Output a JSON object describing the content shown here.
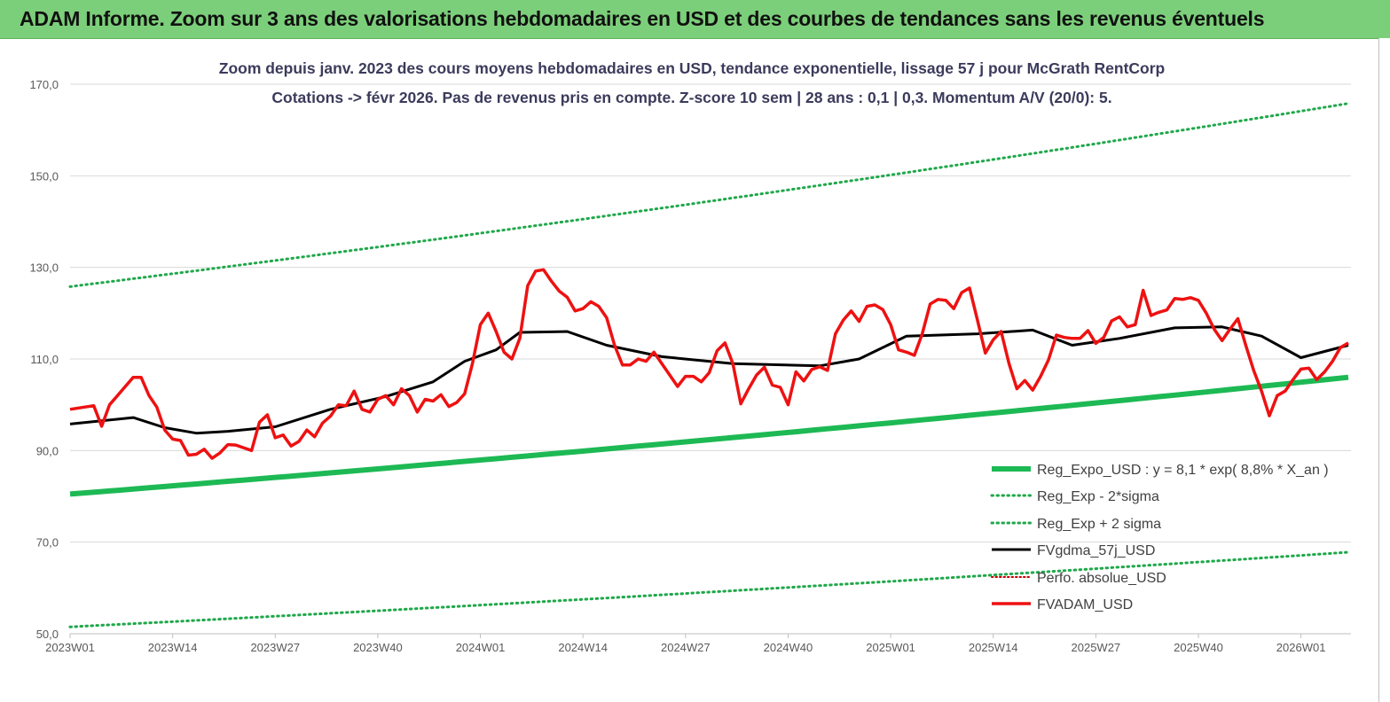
{
  "banner": {
    "title": "ADAM Informe. Zoom sur 3 ans des valorisations hebdomadaires en USD et des courbes de tendances sans les revenus éventuels"
  },
  "colors": {
    "banner_bg": "#7ccf7a",
    "reg_expo": "#1db954",
    "bands": "#1fa84a",
    "fvgdma": "#000000",
    "perfo": "#c00000",
    "fvadam": "#ee1111",
    "grid": "#d9d9d9"
  },
  "chart_data": {
    "type": "line",
    "title_lines": [
      "Zoom depuis janv. 2023 des cours moyens hebdomadaires en USD, tendance exponentielle, lissage 57 j pour McGrath RentCorp",
      "Cotations -> févr 2026. Pas de revenus pris en compte. Z-score 10 sem | 28 ans : 0,1 | 0,3. Momentum A/V (20/0): 5."
    ],
    "y_ticks": [
      "170,0",
      "150,0",
      "130,0",
      "110,0",
      "90,0",
      "70,0",
      "50,0"
    ],
    "ylim": [
      50,
      170
    ],
    "x_ticks": [
      "2023W01",
      "2023W14",
      "2023W27",
      "2023W40",
      "2024W01",
      "2024W14",
      "2024W27",
      "2024W40",
      "2025W01",
      "2025W14",
      "2025W27",
      "2025W40",
      "2026W01"
    ],
    "x_week_count": 162,
    "grid": "horizontal",
    "legend_position": "bottom-right",
    "series": [
      {
        "name": "Reg_Expo_USD : y = 8,1 * exp( 8,8% *  X_an )",
        "style": "thick-solid",
        "start": 80.5,
        "end": 106.0
      },
      {
        "name": "Reg_Exp - 2*sigma",
        "style": "dotted",
        "start": 51.5,
        "end": 67.8
      },
      {
        "name": "Reg_Exp + 2 sigma",
        "style": "dotted",
        "start": 125.8,
        "end": 165.8
      },
      {
        "name": "FVgdma_57j_USD",
        "style": "solid",
        "points": [
          [
            0,
            95.8
          ],
          [
            8,
            97.2
          ],
          [
            12,
            95
          ],
          [
            16,
            93.8
          ],
          [
            20,
            94.2
          ],
          [
            26,
            95.2
          ],
          [
            33,
            99
          ],
          [
            40,
            101.8
          ],
          [
            46,
            105
          ],
          [
            50,
            109.5
          ],
          [
            54,
            112
          ],
          [
            57,
            115.8
          ],
          [
            63,
            116
          ],
          [
            68,
            113
          ],
          [
            75,
            110.5
          ],
          [
            84,
            109
          ],
          [
            95,
            108.5
          ],
          [
            100,
            110
          ],
          [
            106,
            115
          ],
          [
            115,
            115.5
          ],
          [
            122,
            116.3
          ],
          [
            127,
            113
          ],
          [
            133,
            114.5
          ],
          [
            140,
            116.8
          ],
          [
            146,
            117
          ],
          [
            151,
            115
          ],
          [
            156,
            110.3
          ],
          [
            162,
            113
          ]
        ]
      },
      {
        "name": "Perfo. absolue_USD",
        "style": "dotted-thin"
      },
      {
        "name": "FVADAM_USD",
        "style": "solid-thick",
        "points": [
          [
            0,
            99
          ],
          [
            3,
            99.8
          ],
          [
            4,
            95.3
          ],
          [
            5,
            100
          ],
          [
            7,
            104
          ],
          [
            8,
            106
          ],
          [
            9,
            106
          ],
          [
            10,
            102
          ],
          [
            11,
            99.5
          ],
          [
            12,
            94.5
          ],
          [
            13,
            92.5
          ],
          [
            14,
            92.2
          ],
          [
            15,
            89
          ],
          [
            16,
            89.2
          ],
          [
            17,
            90.3
          ],
          [
            18,
            88.3
          ],
          [
            19,
            89.5
          ],
          [
            20,
            91.3
          ],
          [
            21,
            91.2
          ],
          [
            23,
            90
          ],
          [
            24,
            96.2
          ],
          [
            25,
            97.8
          ],
          [
            26,
            92.8
          ],
          [
            27,
            93.4
          ],
          [
            28,
            91
          ],
          [
            29,
            92
          ],
          [
            30,
            94.5
          ],
          [
            31,
            93
          ],
          [
            32,
            96
          ],
          [
            33,
            97.5
          ],
          [
            34,
            100
          ],
          [
            35,
            99.8
          ],
          [
            36,
            103
          ],
          [
            37,
            99
          ],
          [
            38,
            98.4
          ],
          [
            39,
            101.2
          ],
          [
            40,
            102
          ],
          [
            41,
            100
          ],
          [
            42,
            103.5
          ],
          [
            43,
            102
          ],
          [
            44,
            98.4
          ],
          [
            45,
            101.2
          ],
          [
            46,
            100.8
          ],
          [
            47,
            102.2
          ],
          [
            48,
            99.6
          ],
          [
            49,
            100.5
          ],
          [
            50,
            102.4
          ],
          [
            51,
            109
          ],
          [
            52,
            117.5
          ],
          [
            53,
            120
          ],
          [
            54,
            116
          ],
          [
            55,
            111.5
          ],
          [
            56,
            110
          ],
          [
            57,
            114.5
          ],
          [
            58,
            126
          ],
          [
            59,
            129.2
          ],
          [
            60,
            129.5
          ],
          [
            61,
            127
          ],
          [
            62,
            124.8
          ],
          [
            63,
            123.5
          ],
          [
            64,
            120.5
          ],
          [
            65,
            121
          ],
          [
            66,
            122.5
          ],
          [
            67,
            121.5
          ],
          [
            68,
            119
          ],
          [
            69,
            113
          ],
          [
            70,
            108.7
          ],
          [
            71,
            108.7
          ],
          [
            72,
            110
          ],
          [
            73,
            109.5
          ],
          [
            74,
            111.5
          ],
          [
            75,
            109
          ],
          [
            76,
            106.5
          ],
          [
            77,
            104
          ],
          [
            78,
            106.2
          ],
          [
            79,
            106.2
          ],
          [
            80,
            105
          ],
          [
            81,
            107
          ],
          [
            82,
            111.8
          ],
          [
            83,
            113.5
          ],
          [
            84,
            109
          ],
          [
            85,
            100.2
          ],
          [
            86,
            103.5
          ],
          [
            87,
            106.5
          ],
          [
            88,
            108.2
          ],
          [
            89,
            104.3
          ],
          [
            90,
            103.8
          ],
          [
            91,
            100
          ],
          [
            92,
            107.2
          ],
          [
            93,
            105.2
          ],
          [
            94,
            107.7
          ],
          [
            95,
            108.3
          ],
          [
            96,
            107.5
          ],
          [
            97,
            115.5
          ],
          [
            98,
            118.5
          ],
          [
            99,
            120.5
          ],
          [
            100,
            118.2
          ],
          [
            101,
            121.5
          ],
          [
            102,
            121.8
          ],
          [
            103,
            120.8
          ],
          [
            104,
            117.5
          ],
          [
            105,
            112
          ],
          [
            106,
            111.5
          ],
          [
            107,
            110.8
          ],
          [
            108,
            115.5
          ],
          [
            109,
            122
          ],
          [
            110,
            123
          ],
          [
            111,
            122.8
          ],
          [
            112,
            121
          ],
          [
            113,
            124.5
          ],
          [
            114,
            125.5
          ],
          [
            115,
            118.5
          ],
          [
            116,
            111.3
          ],
          [
            117,
            114.2
          ],
          [
            118,
            116
          ],
          [
            119,
            109
          ],
          [
            120,
            103.5
          ],
          [
            121,
            105.3
          ],
          [
            122,
            103.2
          ],
          [
            123,
            106.2
          ],
          [
            124,
            109.8
          ],
          [
            125,
            115.2
          ],
          [
            126,
            114.7
          ],
          [
            127,
            114.5
          ],
          [
            128,
            114.5
          ],
          [
            129,
            116.2
          ],
          [
            130,
            113.4
          ],
          [
            131,
            114.7
          ],
          [
            132,
            118.3
          ],
          [
            133,
            119.2
          ],
          [
            134,
            117
          ],
          [
            135,
            117.5
          ],
          [
            136,
            125
          ],
          [
            137,
            119.5
          ],
          [
            138,
            120.2
          ],
          [
            139,
            120.7
          ],
          [
            140,
            123.2
          ],
          [
            141,
            123
          ],
          [
            142,
            123.4
          ],
          [
            143,
            122.8
          ],
          [
            144,
            120
          ],
          [
            145,
            116.5
          ],
          [
            146,
            114
          ],
          [
            147,
            116.5
          ],
          [
            148,
            118.8
          ],
          [
            149,
            113
          ],
          [
            150,
            107.5
          ],
          [
            151,
            103
          ],
          [
            152,
            97.6
          ],
          [
            153,
            102
          ],
          [
            154,
            103
          ],
          [
            155,
            105.5
          ],
          [
            156,
            107.8
          ],
          [
            157,
            108
          ],
          [
            158,
            105.5
          ],
          [
            159,
            107.2
          ],
          [
            160,
            109.5
          ],
          [
            161,
            112.5
          ],
          [
            162,
            113.5
          ]
        ]
      }
    ]
  }
}
